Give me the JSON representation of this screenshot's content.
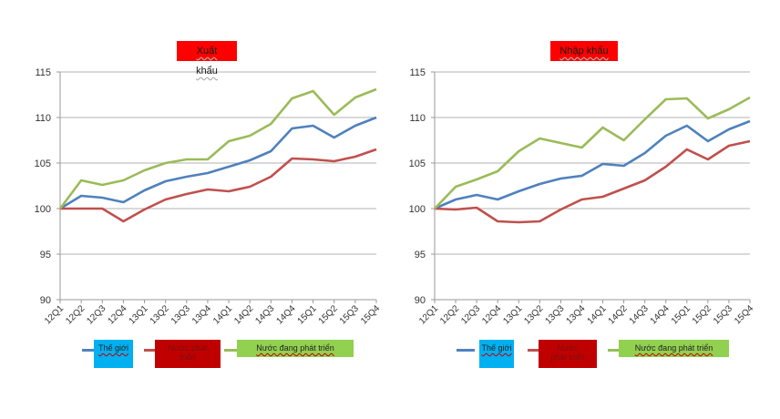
{
  "chart_data": [
    {
      "type": "line",
      "title": "Xuất khẩu",
      "categories": [
        "12Q1",
        "12Q2",
        "12Q3",
        "12Q4",
        "13Q1",
        "13Q2",
        "13Q3",
        "13Q4",
        "14Q1",
        "14Q2",
        "14Q3",
        "14Q4",
        "15Q1",
        "15Q2",
        "15Q3",
        "15Q4"
      ],
      "yticks": [
        "90",
        "95",
        "100",
        "105",
        "110",
        "115"
      ],
      "ylim": [
        90,
        115
      ],
      "grid": true,
      "legend_position": "bottom",
      "series": [
        {
          "name": "Thế giới",
          "color": "#4f81bd",
          "box_color": "#00b0f0",
          "values": [
            100,
            101.4,
            101.2,
            100.7,
            102.0,
            103.0,
            103.5,
            103.9,
            104.6,
            105.3,
            106.3,
            108.8,
            109.1,
            107.8,
            109.1,
            110.0
          ]
        },
        {
          "name": "Nước phát triển",
          "color": "#c0504d",
          "box_color": "#c00000",
          "values": [
            100,
            100,
            100,
            98.6,
            99.9,
            101.0,
            101.6,
            102.1,
            101.9,
            102.4,
            103.5,
            105.5,
            105.4,
            105.2,
            105.7,
            106.5
          ]
        },
        {
          "name": "Nước đang phát triển",
          "color": "#9bbb59",
          "box_color": "#92d050",
          "values": [
            100,
            103.1,
            102.6,
            103.1,
            104.2,
            105.0,
            105.4,
            105.4,
            107.4,
            108.0,
            109.3,
            112.1,
            112.9,
            110.3,
            112.2,
            113.1
          ]
        }
      ]
    },
    {
      "type": "line",
      "title": "Nhập khẩu",
      "categories": [
        "12Q1",
        "12Q2",
        "12Q3",
        "12Q4",
        "13Q1",
        "13Q2",
        "13Q3",
        "13Q4",
        "14Q1",
        "14Q2",
        "14Q3",
        "14Q4",
        "15Q1",
        "15Q2",
        "15Q3",
        "15Q4"
      ],
      "yticks": [
        "90",
        "95",
        "100",
        "105",
        "110",
        "115"
      ],
      "ylim": [
        90,
        115
      ],
      "grid": true,
      "legend_position": "bottom",
      "series": [
        {
          "name": "Thế giới",
          "color": "#4f81bd",
          "box_color": "#00b0f0",
          "values": [
            100,
            101.0,
            101.5,
            101.0,
            101.9,
            102.7,
            103.3,
            103.6,
            104.9,
            104.7,
            106.1,
            108.0,
            109.1,
            107.4,
            108.7,
            109.6
          ]
        },
        {
          "name": "Nước phát triển",
          "color": "#c0504d",
          "box_color": "#c00000",
          "values": [
            100,
            99.9,
            100.1,
            98.6,
            98.5,
            98.6,
            99.9,
            101.0,
            101.3,
            102.2,
            103.1,
            104.6,
            106.5,
            105.4,
            106.9,
            107.4
          ]
        },
        {
          "name": "Nước đang phát triển",
          "color": "#9bbb59",
          "box_color": "#92d050",
          "values": [
            100,
            102.4,
            103.2,
            104.1,
            106.3,
            107.7,
            107.2,
            106.7,
            108.9,
            107.5,
            109.8,
            112.0,
            112.1,
            109.9,
            110.9,
            112.2
          ]
        }
      ]
    }
  ]
}
